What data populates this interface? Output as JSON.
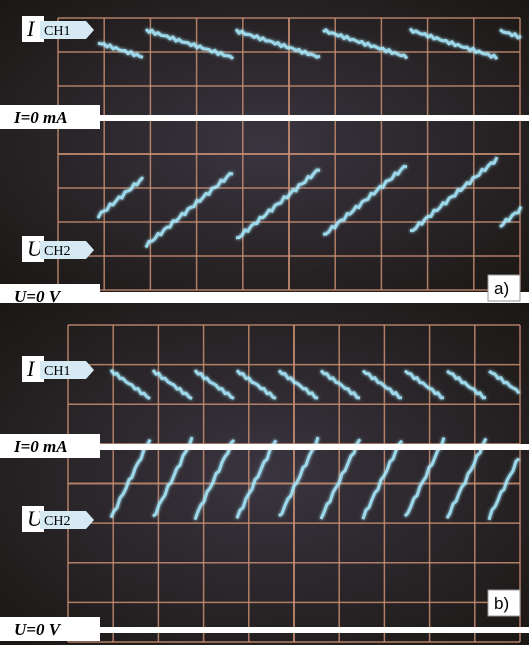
{
  "panels": [
    {
      "ch1_symbol": "I",
      "ch1_channel": "CH1",
      "current_zero": "I=0 mA",
      "ch2_symbol": "U",
      "ch2_channel": "CH2",
      "voltage_zero": "U=0 V",
      "label": "a)"
    },
    {
      "ch1_symbol": "I",
      "ch1_channel": "CH1",
      "current_zero": "I=0 mA",
      "ch2_symbol": "U",
      "ch2_channel": "CH2",
      "voltage_zero": "U=0 V",
      "label": "b)"
    }
  ]
}
